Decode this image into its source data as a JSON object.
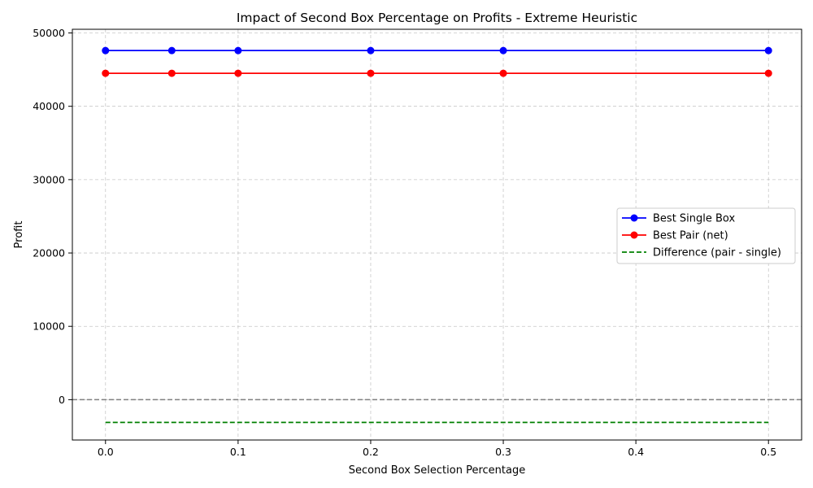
{
  "chart_data": {
    "type": "line",
    "title": "Impact of Second Box Percentage on Profits - Extreme Heuristic",
    "xlabel": "Second Box Selection Percentage",
    "ylabel": "Profit",
    "xlim": [
      -0.025,
      0.525
    ],
    "ylim": [
      -5500,
      50500
    ],
    "x_ticks": [
      0.0,
      0.1,
      0.2,
      0.3,
      0.4,
      0.5
    ],
    "x_tick_labels": [
      "0.0",
      "0.1",
      "0.2",
      "0.3",
      "0.4",
      "0.5"
    ],
    "y_ticks": [
      0,
      10000,
      20000,
      30000,
      40000,
      50000
    ],
    "y_tick_labels": [
      "0",
      "10000",
      "20000",
      "30000",
      "40000",
      "50000"
    ],
    "grid": true,
    "legend_position": "center-right",
    "reference_line": {
      "y": 0,
      "color": "#808080",
      "style": "dashed"
    },
    "x": [
      0.0,
      0.05,
      0.1,
      0.2,
      0.3,
      0.5
    ],
    "series": [
      {
        "name": "Best Single Box",
        "values": [
          47600,
          47600,
          47600,
          47600,
          47600,
          47600
        ],
        "color": "#0000ff",
        "style": "solid",
        "marker": "circle"
      },
      {
        "name": "Best Pair (net)",
        "values": [
          44500,
          44500,
          44500,
          44500,
          44500,
          44500
        ],
        "color": "#ff0000",
        "style": "solid",
        "marker": "circle"
      },
      {
        "name": "Difference (pair - single)",
        "values": [
          -3100,
          -3100,
          -3100,
          -3100,
          -3100,
          -3100
        ],
        "color": "#008000",
        "style": "dashed",
        "marker": "none"
      }
    ]
  }
}
